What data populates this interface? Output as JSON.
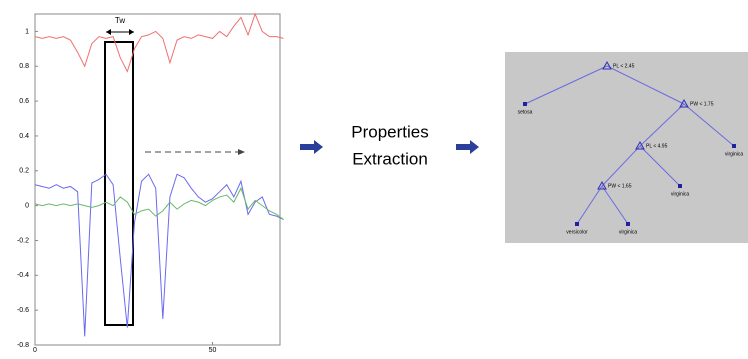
{
  "plot": {
    "tw_label": "Tw",
    "xlim": [
      0,
      69
    ],
    "xticks": [
      0,
      50
    ],
    "ylim": [
      -0.8,
      1.1
    ],
    "yticks": [
      1,
      0.8,
      0.6,
      0.4,
      0.2,
      0,
      -0.2,
      -0.4,
      -0.6,
      -0.8
    ],
    "x": [
      0,
      2,
      4,
      6,
      8,
      10,
      12,
      14,
      16,
      18,
      20,
      22,
      24,
      26,
      28,
      30,
      32,
      34,
      36,
      38,
      40,
      42,
      44,
      46,
      48,
      50,
      52,
      54,
      56,
      58,
      60,
      62,
      64,
      66,
      68,
      70
    ],
    "series": [
      {
        "color": "#f07070",
        "values": [
          0.97,
          0.96,
          0.97,
          0.96,
          0.97,
          0.95,
          0.88,
          0.8,
          0.93,
          0.97,
          0.96,
          0.97,
          0.85,
          0.77,
          0.9,
          0.97,
          0.98,
          1.0,
          0.96,
          0.82,
          0.95,
          0.97,
          0.96,
          0.98,
          0.97,
          0.96,
          1.0,
          0.97,
          1.03,
          1.08,
          0.98,
          1.1,
          1.0,
          0.97,
          0.97,
          0.96
        ]
      },
      {
        "color": "#6a6af0",
        "values": [
          0.12,
          0.11,
          0.1,
          0.12,
          0.1,
          0.11,
          0.08,
          -0.75,
          0.13,
          0.15,
          0.18,
          0.12,
          -0.3,
          -0.7,
          -0.1,
          0.14,
          0.18,
          0.1,
          -0.65,
          0.05,
          0.18,
          0.16,
          0.1,
          0.05,
          0.02,
          0.04,
          0.08,
          0.12,
          0.05,
          0.14,
          -0.05,
          0.02,
          0.05,
          -0.05,
          -0.06,
          -0.08
        ]
      },
      {
        "color": "#6ab86a",
        "values": [
          0.01,
          0.0,
          0.01,
          0.0,
          0.01,
          0.0,
          0.01,
          0.0,
          -0.01,
          0.0,
          0.02,
          0.0,
          0.05,
          0.02,
          -0.05,
          -0.03,
          -0.02,
          -0.06,
          -0.03,
          0.02,
          -0.02,
          0.01,
          0.03,
          0.02,
          0.0,
          0.03,
          0.05,
          0.06,
          0.02,
          0.1,
          -0.02,
          0.03,
          0.0,
          -0.03,
          -0.05,
          -0.08
        ]
      }
    ]
  },
  "step": {
    "line1": "Properties",
    "line2": "Extraction"
  },
  "tree": {
    "nodes": [
      {
        "label": "PL < 2.45"
      },
      {
        "label": "setosa"
      },
      {
        "label": "PW < 1.75"
      },
      {
        "label": "PL < 4.95"
      },
      {
        "label": "virginica"
      },
      {
        "label": "PW < 1.65"
      },
      {
        "label": "virginica"
      },
      {
        "label": "versicolor"
      },
      {
        "label": "virginica"
      }
    ]
  }
}
